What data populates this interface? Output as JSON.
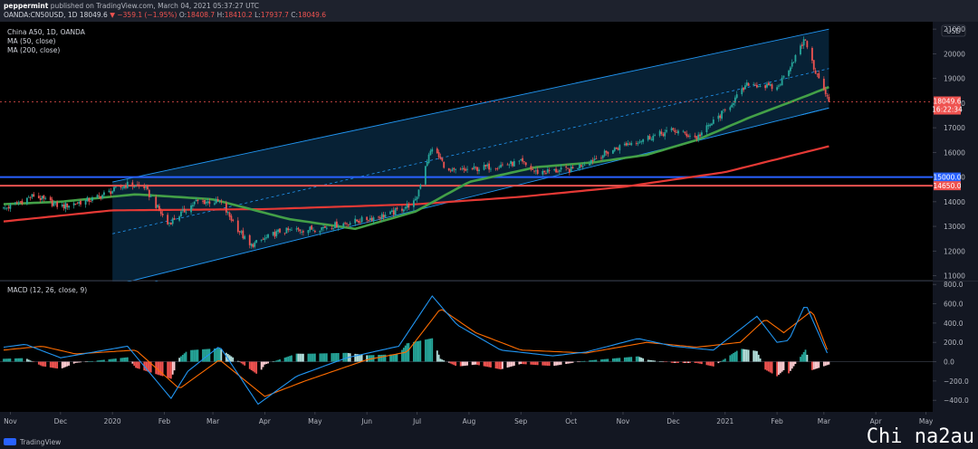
{
  "header": {
    "author": "peppermint",
    "published": "published on TradingView.com, March 04, 2021 05:37:27 UTC",
    "symbol": "OANDA:CN50USD, 1D",
    "last": "18049.6",
    "change": "▼ −359.1 (−1.95%)",
    "o_label": "O:",
    "o": "18408.7",
    "h_label": "H:",
    "h": "18410.2",
    "l_label": "L:",
    "l": "17937.7",
    "c_label": "C:",
    "c": "18049.6"
  },
  "legend": {
    "title": "China A50, 1D, OANDA",
    "ma50": "MA (50, close)",
    "ma200": "MA (200, close)",
    "macd": "MACD (12, 26, close, 9)"
  },
  "currency": "USD",
  "colors": {
    "up": "#26a69a",
    "down": "#ef5350",
    "ma50": "#43a047",
    "ma200": "#e53935",
    "channel": "#2196f3",
    "macd_line": "#2196f3",
    "signal_line": "#ff6d00",
    "level_blue": "#2962ff",
    "level_red": "#ef5350"
  },
  "footer": {
    "logo": "TradingView",
    "watermark": "Chi na2au"
  },
  "chart_data": [
    {
      "type": "candlestick",
      "title": "China A50, 1D, OANDA",
      "yaxis": {
        "ticks": [
          11000,
          12000,
          13000,
          14000,
          15000,
          16000,
          17000,
          18000,
          19000,
          20000,
          21000
        ],
        "range": [
          10800,
          21300
        ]
      },
      "xaxis": {
        "ticks": [
          "Nov",
          "Dec",
          "2020",
          "Feb",
          "Mar",
          "Apr",
          "May",
          "Jun",
          "Jul",
          "Aug",
          "Sep",
          "Oct",
          "Nov",
          "Dec",
          "2021",
          "Feb",
          "Mar",
          "Apr",
          "May"
        ],
        "tick_dates": [
          "2019-11-01",
          "2019-12-01",
          "2020-01-01",
          "2020-02-01",
          "2020-03-01",
          "2020-04-01",
          "2020-05-01",
          "2020-06-01",
          "2020-07-01",
          "2020-08-01",
          "2020-09-01",
          "2020-10-01",
          "2020-11-01",
          "2020-12-01",
          "2021-01-01",
          "2021-02-01",
          "2021-03-01",
          "2021-04-01",
          "2021-05-01"
        ],
        "range": [
          "2019-10-28",
          "2021-05-05"
        ]
      },
      "series": [
        {
          "name": "price",
          "x": [
            "2019-10-28",
            "2019-11-15",
            "2019-12-01",
            "2019-12-20",
            "2020-01-10",
            "2020-01-20",
            "2020-02-03",
            "2020-02-20",
            "2020-03-05",
            "2020-03-23",
            "2020-04-10",
            "2020-05-01",
            "2020-05-25",
            "2020-06-15",
            "2020-06-30",
            "2020-07-06",
            "2020-07-10",
            "2020-07-20",
            "2020-08-01",
            "2020-09-01",
            "2020-09-10",
            "2020-10-01",
            "2020-11-01",
            "2020-12-01",
            "2020-12-15",
            "2021-01-01",
            "2021-01-15",
            "2021-02-01",
            "2021-02-18",
            "2021-02-22",
            "2021-03-04"
          ],
          "y": [
            13700,
            14250,
            13800,
            14100,
            14700,
            14600,
            13100,
            14000,
            14000,
            12200,
            12800,
            12900,
            13200,
            13500,
            14000,
            15500,
            16200,
            15200,
            15300,
            15600,
            15200,
            15300,
            16300,
            16900,
            16600,
            17700,
            18800,
            18600,
            20600,
            19600,
            18049.6
          ]
        },
        {
          "name": "MA (50, close)",
          "x": [
            "2019-10-28",
            "2019-12-01",
            "2020-01-15",
            "2020-03-01",
            "2020-04-15",
            "2020-05-25",
            "2020-06-30",
            "2020-08-01",
            "2020-09-10",
            "2020-10-15",
            "2020-11-15",
            "2020-12-15",
            "2021-01-15",
            "2021-02-15",
            "2021-03-04"
          ],
          "y": [
            13900,
            14000,
            14300,
            14100,
            13300,
            12900,
            13600,
            14800,
            15400,
            15600,
            15900,
            16500,
            17400,
            18200,
            18650
          ]
        },
        {
          "name": "MA (200, close)",
          "x": [
            "2019-10-28",
            "2020-01-01",
            "2020-04-01",
            "2020-07-01",
            "2020-09-01",
            "2020-11-01",
            "2021-01-01",
            "2021-03-04"
          ],
          "y": [
            13200,
            13650,
            13700,
            13900,
            14200,
            14600,
            15200,
            16250
          ]
        }
      ],
      "levels": [
        {
          "value": 15000.0,
          "label": "15000.0",
          "color": "#2962ff"
        },
        {
          "value": 14650.0,
          "label": "14650.0",
          "color": "#ef5350"
        }
      ],
      "last_price": {
        "value": 18049.6,
        "label": "18049.6",
        "countdown": "16:22:34"
      }
    },
    {
      "type": "macd",
      "title": "MACD (12, 26, close, 9)",
      "yaxis": {
        "ticks": [
          -400.0,
          -200.0,
          0.0,
          200.0,
          400.0,
          600.0,
          800.0
        ],
        "range": [
          -520,
          830
        ]
      },
      "series": [
        {
          "name": "MACD",
          "x": [
            "2019-10-28",
            "2019-11-10",
            "2019-12-01",
            "2020-01-10",
            "2020-02-05",
            "2020-02-15",
            "2020-03-05",
            "2020-03-28",
            "2020-04-20",
            "2020-05-20",
            "2020-06-20",
            "2020-07-10",
            "2020-07-25",
            "2020-08-20",
            "2020-09-20",
            "2020-10-10",
            "2020-11-10",
            "2020-12-01",
            "2020-12-25",
            "2021-01-20",
            "2021-02-01",
            "2021-02-08",
            "2021-02-18",
            "2021-03-04"
          ],
          "y": [
            150,
            180,
            40,
            160,
            -380,
            -100,
            160,
            -440,
            -150,
            40,
            160,
            680,
            380,
            120,
            60,
            100,
            240,
            160,
            120,
            470,
            200,
            220,
            600,
            50
          ]
        },
        {
          "name": "Signal",
          "x": [
            "2019-10-28",
            "2019-11-20",
            "2019-12-10",
            "2020-01-15",
            "2020-02-10",
            "2020-03-05",
            "2020-04-01",
            "2020-04-25",
            "2020-06-01",
            "2020-06-25",
            "2020-07-15",
            "2020-08-05",
            "2020-09-01",
            "2020-10-10",
            "2020-11-15",
            "2020-12-15",
            "2021-01-10",
            "2021-01-25",
            "2021-02-05",
            "2021-02-22",
            "2021-03-04"
          ],
          "y": [
            120,
            160,
            80,
            120,
            -280,
            20,
            -360,
            -200,
            20,
            100,
            550,
            300,
            120,
            90,
            200,
            150,
            200,
            440,
            300,
            530,
            80
          ]
        }
      ]
    }
  ]
}
